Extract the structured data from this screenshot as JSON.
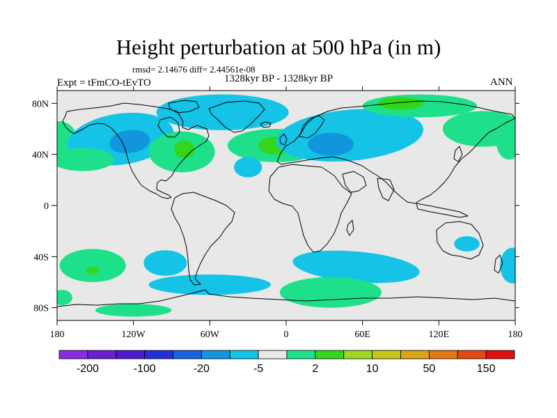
{
  "title": "Height perturbation at 500 hPa (in m)",
  "stats_text": "rmsd= 2.14676 diff= 2.44561e-08",
  "period_text": "1328kyr BP - 1328kyr BP",
  "expt_text": "Expt = tFmCO-tEvTO",
  "season_text": "ANN",
  "colors": {
    "background_level": "#e8e8e8",
    "pos_light": "#1fe08a",
    "pos_mid": "#33d61a",
    "neg_light": "#14c3e6",
    "neg_mid": "#1196de",
    "coast": "#000000"
  },
  "map": {
    "projection": "cylindrical-equidistant",
    "lon_range": [
      -180,
      180
    ],
    "lat_range": [
      -90,
      90
    ],
    "lat_ticks": [
      {
        "lat": 80,
        "label": "80N"
      },
      {
        "lat": 40,
        "label": "40N"
      },
      {
        "lat": 0,
        "label": "0"
      },
      {
        "lat": -40,
        "label": "40S"
      },
      {
        "lat": -80,
        "label": "80S"
      }
    ],
    "lon_ticks": [
      {
        "lon": -180,
        "label": "180"
      },
      {
        "lon": -120,
        "label": "120W"
      },
      {
        "lon": -60,
        "label": "60W"
      },
      {
        "lon": 0,
        "label": "0"
      },
      {
        "lon": 60,
        "label": "60E"
      },
      {
        "lon": 120,
        "label": "120E"
      },
      {
        "lon": 180,
        "label": "180"
      }
    ],
    "anomaly_regions": [
      {
        "name": "npac-high-west",
        "level": "pos_light",
        "lon": -178,
        "lat": 50,
        "rx": 14,
        "ry": 16,
        "rot": 0
      },
      {
        "name": "npac-low",
        "level": "neg_light",
        "lon": -130,
        "lat": 52,
        "rx": 42,
        "ry": 20,
        "rot": -8
      },
      {
        "name": "npac-low-core",
        "level": "neg_mid",
        "lon": -123,
        "lat": 50,
        "rx": 16,
        "ry": 9,
        "rot": -8
      },
      {
        "name": "npac-high-south",
        "level": "pos_light",
        "lon": -160,
        "lat": 36,
        "rx": 25,
        "ry": 9,
        "rot": 0
      },
      {
        "name": "namer-high",
        "level": "pos_light",
        "lon": -82,
        "lat": 42,
        "rx": 26,
        "ry": 16,
        "rot": 0
      },
      {
        "name": "namer-high-core",
        "level": "pos_mid",
        "lon": -80,
        "lat": 44,
        "rx": 8,
        "ry": 7,
        "rot": 0
      },
      {
        "name": "arctic-low",
        "level": "neg_light",
        "lon": -50,
        "lat": 73,
        "rx": 52,
        "ry": 14,
        "rot": 0
      },
      {
        "name": "natl-high",
        "level": "pos_light",
        "lon": -8,
        "lat": 47,
        "rx": 38,
        "ry": 13,
        "rot": 0
      },
      {
        "name": "natl-high-core",
        "level": "pos_mid",
        "lon": -8,
        "lat": 47,
        "rx": 14,
        "ry": 7,
        "rot": 0
      },
      {
        "name": "natl-low",
        "level": "neg_light",
        "lon": -30,
        "lat": 30,
        "rx": 11,
        "ry": 8,
        "rot": 0
      },
      {
        "name": "eurasia-low",
        "level": "neg_light",
        "lon": 50,
        "lat": 55,
        "rx": 58,
        "ry": 20,
        "rot": -5
      },
      {
        "name": "eurasia-low-core",
        "level": "neg_mid",
        "lon": 35,
        "lat": 48,
        "rx": 18,
        "ry": 9,
        "rot": 0
      },
      {
        "name": "siberia-high",
        "level": "pos_light",
        "lon": 105,
        "lat": 78,
        "rx": 45,
        "ry": 9,
        "rot": 0
      },
      {
        "name": "siberia-high-core",
        "level": "pos_mid",
        "lon": 90,
        "lat": 80,
        "rx": 18,
        "ry": 5,
        "rot": 0
      },
      {
        "name": "npac-high-east",
        "level": "pos_light",
        "lon": 155,
        "lat": 60,
        "rx": 32,
        "ry": 14,
        "rot": 0
      },
      {
        "name": "npac-high-east2",
        "level": "pos_light",
        "lon": 175,
        "lat": 50,
        "rx": 10,
        "ry": 14,
        "rot": 0
      },
      {
        "name": "spac-high",
        "level": "pos_light",
        "lon": -152,
        "lat": -47,
        "rx": 26,
        "ry": 13,
        "rot": 0
      },
      {
        "name": "spac-high-core",
        "level": "pos_mid",
        "lon": -152,
        "lat": -51,
        "rx": 5,
        "ry": 3,
        "rot": 0
      },
      {
        "name": "spac-low",
        "level": "neg_light",
        "lon": -95,
        "lat": -45,
        "rx": 17,
        "ry": 10,
        "rot": 0
      },
      {
        "name": "sam-low",
        "level": "neg_light",
        "lon": -60,
        "lat": -62,
        "rx": 48,
        "ry": 8,
        "rot": 0
      },
      {
        "name": "satl-low",
        "level": "neg_light",
        "lon": 55,
        "lat": -48,
        "rx": 50,
        "ry": 12,
        "rot": 5
      },
      {
        "name": "soc-high",
        "level": "pos_light",
        "lon": 35,
        "lat": -68,
        "rx": 40,
        "ry": 12,
        "rot": 0
      },
      {
        "name": "aus-low",
        "level": "neg_light",
        "lon": 142,
        "lat": -30,
        "rx": 10,
        "ry": 6,
        "rot": 0
      },
      {
        "name": "south-low-east",
        "level": "neg_light",
        "lon": 178,
        "lat": -47,
        "rx": 10,
        "ry": 14,
        "rot": 0
      },
      {
        "name": "ant-high-west",
        "level": "pos_light",
        "lon": -120,
        "lat": -82,
        "rx": 30,
        "ry": 5,
        "rot": 0
      },
      {
        "name": "south-high-west",
        "level": "pos_light",
        "lon": -176,
        "lat": -72,
        "rx": 8,
        "ry": 6,
        "rot": 0
      }
    ]
  },
  "colorbar": {
    "colors": [
      "#8a2be2",
      "#6a1fd4",
      "#4f1ad0",
      "#2230dc",
      "#1863e0",
      "#1196de",
      "#14c3e6",
      "#e8e8e8",
      "#1fe08a",
      "#33d61a",
      "#a0d823",
      "#c8c41a",
      "#d8a418",
      "#e07814",
      "#e24a14",
      "#e01010"
    ],
    "labels": [
      "-200",
      "-100",
      "-20",
      "-5",
      "2",
      "10",
      "50",
      "150"
    ]
  }
}
